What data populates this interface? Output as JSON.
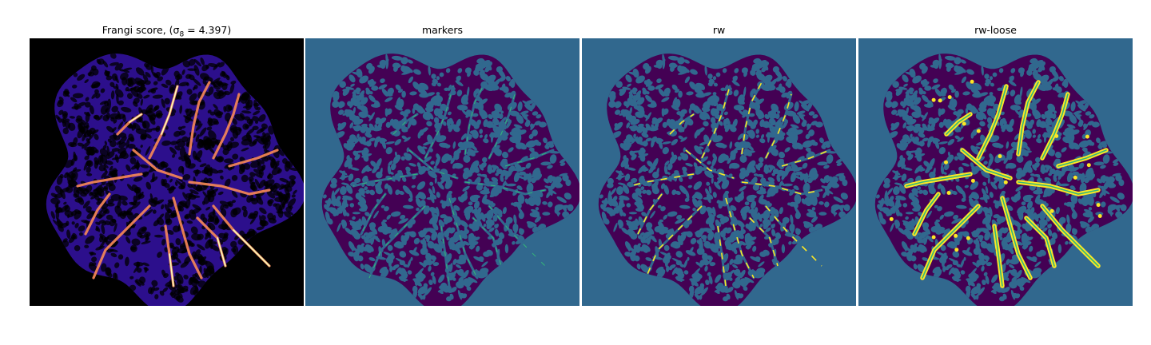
{
  "figure": {
    "panels": [
      {
        "title": "Frangi score, (σ",
        "title_sub": "8",
        "title_suffix": " = 4.397)",
        "colormap": "magma-like",
        "background": "#000000"
      },
      {
        "title": "markers",
        "colormap": "viridis",
        "background": "#31688e"
      },
      {
        "title": "rw",
        "colormap": "viridis",
        "background": "#31688e"
      },
      {
        "title": "rw-loose",
        "colormap": "viridis",
        "background": "#31688e"
      }
    ],
    "colors": {
      "tissue": "#440154",
      "background_label": "#31688e",
      "marker": "#35b779",
      "vessel": "#fde725",
      "frangi_bg": "#000000",
      "frangi_tissue": "#2c0f8c",
      "frangi_vessel": "#f98a56",
      "frangi_vessel_hot": "#fcfdbf"
    }
  }
}
